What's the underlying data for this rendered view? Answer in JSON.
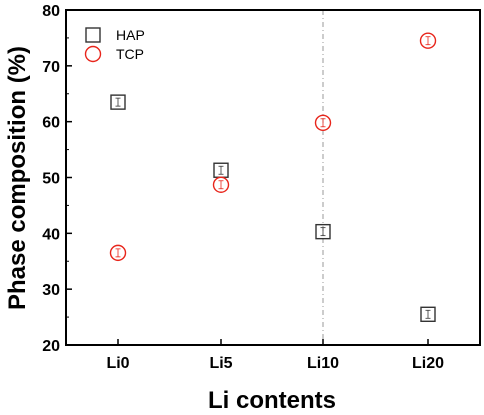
{
  "chart_data": {
    "type": "scatter",
    "xlabel": "Li contents",
    "ylabel": "Phase composition (%)",
    "categories": [
      "Li0",
      "Li5",
      "Li10",
      "Li20"
    ],
    "ylim": [
      20,
      80
    ],
    "yticks": [
      20,
      30,
      40,
      50,
      60,
      70,
      80
    ],
    "grid": false,
    "legend_position": "top-left",
    "reference_line_at": "Li10",
    "series": [
      {
        "name": "HAP",
        "marker": "open-square",
        "color": "#333333",
        "values": [
          63.5,
          51.3,
          40.3,
          25.5
        ]
      },
      {
        "name": "TCP",
        "marker": "open-circle",
        "color": "#e8251b",
        "values": [
          36.5,
          48.7,
          59.8,
          74.5
        ]
      }
    ]
  }
}
